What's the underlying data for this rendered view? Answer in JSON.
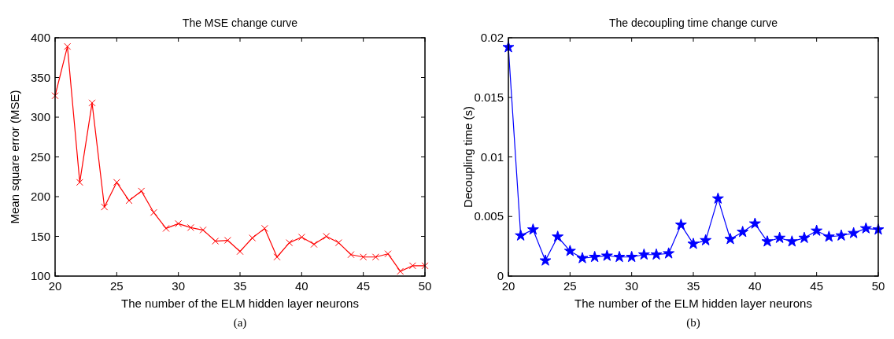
{
  "chart_data": [
    {
      "type": "line",
      "title": "The MSE change curve",
      "xlabel": "The number of the ELM hidden layer neurons",
      "ylabel": "Mean square error (MSE)",
      "annotations": [
        "(a)"
      ],
      "marker": "cross",
      "line_style": "solid",
      "grid": false,
      "xlim": [
        20,
        50
      ],
      "xticks": [
        20,
        25,
        30,
        35,
        40,
        45,
        50
      ],
      "ylim": [
        100,
        400
      ],
      "yticks": [
        100,
        150,
        200,
        250,
        300,
        350,
        400
      ],
      "x": [
        20,
        21,
        22,
        23,
        24,
        25,
        26,
        27,
        28,
        29,
        30,
        31,
        32,
        33,
        34,
        35,
        36,
        37,
        38,
        39,
        40,
        41,
        42,
        43,
        44,
        45,
        46,
        47,
        48,
        49,
        50
      ],
      "series": [
        {
          "color": "#ff0000",
          "values": [
            327,
            389,
            218,
            318,
            187,
            218,
            195,
            207,
            180,
            160,
            166,
            161,
            158,
            144,
            145,
            131,
            148,
            160,
            124,
            142,
            149,
            140,
            150,
            142,
            127,
            124,
            124,
            128,
            106,
            113,
            113
          ]
        }
      ]
    },
    {
      "type": "line",
      "title": "The decoupling time change curve",
      "xlabel": "The number of the ELM hidden layer neurons",
      "ylabel": "Decoupling time (s)",
      "annotations": [
        "(b)"
      ],
      "marker": "star",
      "line_style": "solid",
      "grid": false,
      "xlim": [
        20,
        50
      ],
      "xticks": [
        20,
        25,
        30,
        35,
        40,
        45,
        50
      ],
      "ylim": [
        0,
        0.02
      ],
      "yticks": [
        0,
        0.005,
        0.01,
        0.015,
        0.02
      ],
      "x": [
        20,
        21,
        22,
        23,
        24,
        25,
        26,
        27,
        28,
        29,
        30,
        31,
        32,
        33,
        34,
        35,
        36,
        37,
        38,
        39,
        40,
        41,
        42,
        43,
        44,
        45,
        46,
        47,
        48,
        49,
        50
      ],
      "series": [
        {
          "color": "#0000ff",
          "values": [
            0.0192,
            0.0034,
            0.0039,
            0.0013,
            0.0033,
            0.0021,
            0.0015,
            0.0016,
            0.0017,
            0.0016,
            0.0016,
            0.0018,
            0.0018,
            0.0019,
            0.0043,
            0.0027,
            0.003,
            0.0065,
            0.0031,
            0.0037,
            0.0044,
            0.0029,
            0.0032,
            0.0029,
            0.0032,
            0.0038,
            0.0033,
            0.0034,
            0.0036,
            0.004,
            0.0039
          ]
        }
      ]
    }
  ]
}
